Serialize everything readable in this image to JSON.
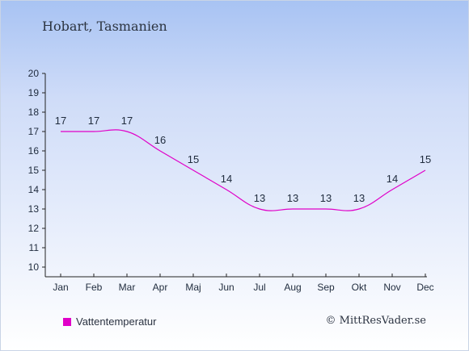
{
  "chart_data": {
    "type": "line",
    "title": "Hobart, Tasmanien",
    "categories": [
      "Jan",
      "Feb",
      "Mar",
      "Apr",
      "Maj",
      "Jun",
      "Jul",
      "Aug",
      "Sep",
      "Okt",
      "Nov",
      "Dec"
    ],
    "series": [
      {
        "name": "Vattentemperatur",
        "values": [
          17,
          17,
          17,
          16,
          15,
          14,
          13,
          13,
          13,
          13,
          14,
          15
        ],
        "color": "#e000c8"
      }
    ],
    "ylim": [
      10,
      20
    ],
    "yticks": [
      10,
      11,
      12,
      13,
      14,
      15,
      16,
      17,
      18,
      19,
      20
    ],
    "grid": false,
    "legend": "bottom-left"
  },
  "credit": "© MittResVader.se",
  "colors": {
    "axis": "#222222",
    "label": "#1f2b3d",
    "line": "#e000c8"
  }
}
